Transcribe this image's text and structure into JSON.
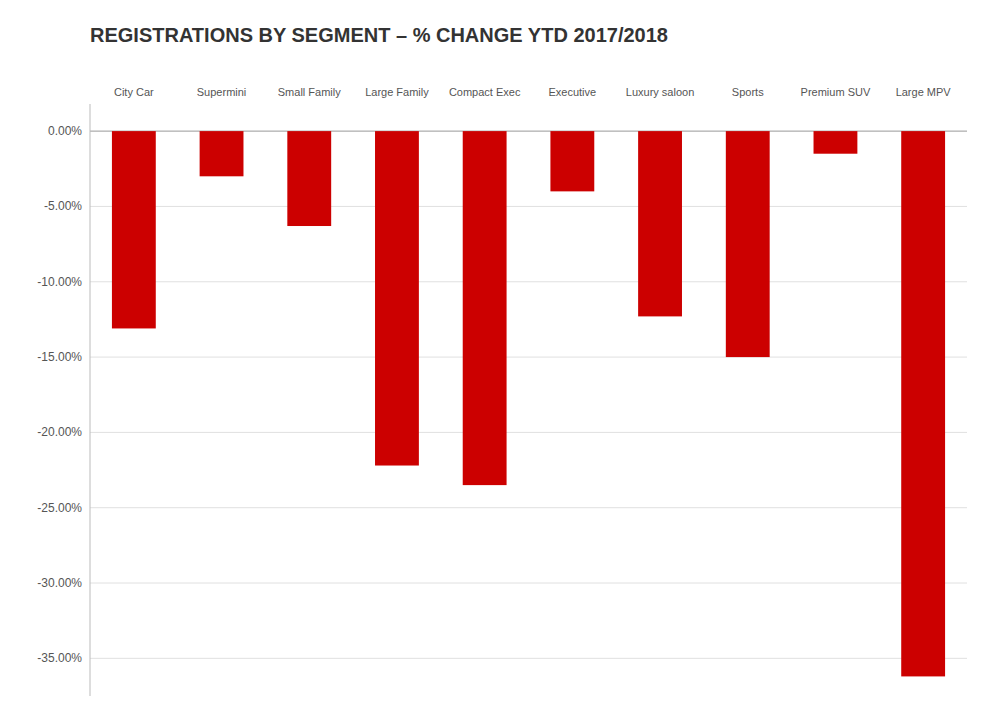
{
  "chart_data": {
    "type": "bar",
    "title": "REGISTRATIONS BY SEGMENT – % CHANGE YTD 2017/2018",
    "categories": [
      "City Car",
      "Supermini",
      "Small Family",
      "Large Family",
      "Compact Exec",
      "Executive",
      "Luxury saloon",
      "Sports",
      "Premium SUV",
      "Large MPV"
    ],
    "values": [
      -13.1,
      -3.0,
      -6.3,
      -22.2,
      -23.5,
      -4.0,
      -12.3,
      -15.0,
      -1.5,
      -36.2
    ],
    "color": "#cc0000",
    "ylim": [
      -37.5,
      1.8
    ],
    "yticks": [
      {
        "value": 0,
        "label": "0.00%"
      },
      {
        "value": -5,
        "label": "-5.00%"
      },
      {
        "value": -10,
        "label": "-10.00%"
      },
      {
        "value": -15,
        "label": "-15.00%"
      },
      {
        "value": -20,
        "label": "-20.00%"
      },
      {
        "value": -25,
        "label": "-25.00%"
      },
      {
        "value": -30,
        "label": "-30.00%"
      },
      {
        "value": -35,
        "label": "-35.00%"
      }
    ],
    "grid": true
  }
}
